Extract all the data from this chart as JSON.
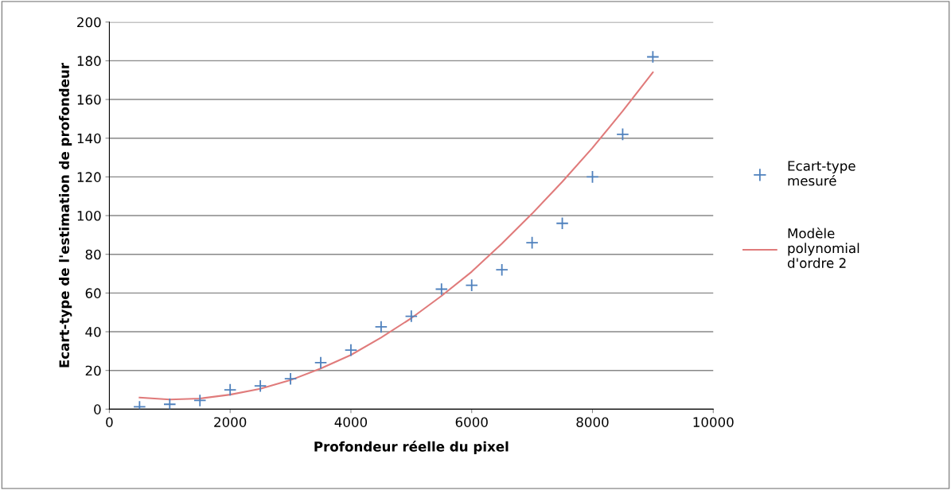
{
  "chart_data": {
    "type": "scatter",
    "xlabel": "Profondeur réelle du pixel",
    "ylabel": "Ecart-type de l'estimation de profondeur",
    "xlim": [
      0,
      10000
    ],
    "xticks": [
      0,
      2000,
      4000,
      6000,
      8000,
      10000
    ],
    "ylim": [
      0,
      200
    ],
    "yticks": [
      0,
      20,
      40,
      60,
      80,
      100,
      120,
      140,
      160,
      180,
      200
    ],
    "grid": "y",
    "legend": "right",
    "marker": "cross",
    "series": [
      {
        "name": "Ecart-type mesuré",
        "color": "#4f81bd",
        "x": [
          500,
          1000,
          1500,
          2000,
          2500,
          3000,
          3500,
          4000,
          4500,
          5000,
          5500,
          6000,
          6500,
          7000,
          7500,
          8000,
          8500,
          9000
        ],
        "values": [
          1.2,
          2.5,
          4.5,
          10,
          12,
          15.7,
          24,
          30.5,
          42.5,
          48,
          62,
          64,
          72,
          86,
          96,
          120,
          142,
          182
        ]
      },
      {
        "name": "Modèle polynomial d'ordre 2",
        "type": "line",
        "color": "#e07b7b",
        "marker": "none",
        "line_style": "solid",
        "x": [
          500,
          1000,
          1500,
          2000,
          2500,
          3000,
          3500,
          4000,
          4500,
          5000,
          5500,
          6000,
          6500,
          7000,
          7500,
          8000,
          8500,
          9000
        ],
        "values": [
          6,
          5,
          5.5,
          7.5,
          10.5,
          15,
          21,
          28,
          37,
          47,
          58.5,
          71,
          85.5,
          101,
          117.5,
          135,
          154,
          174
        ]
      }
    ]
  }
}
